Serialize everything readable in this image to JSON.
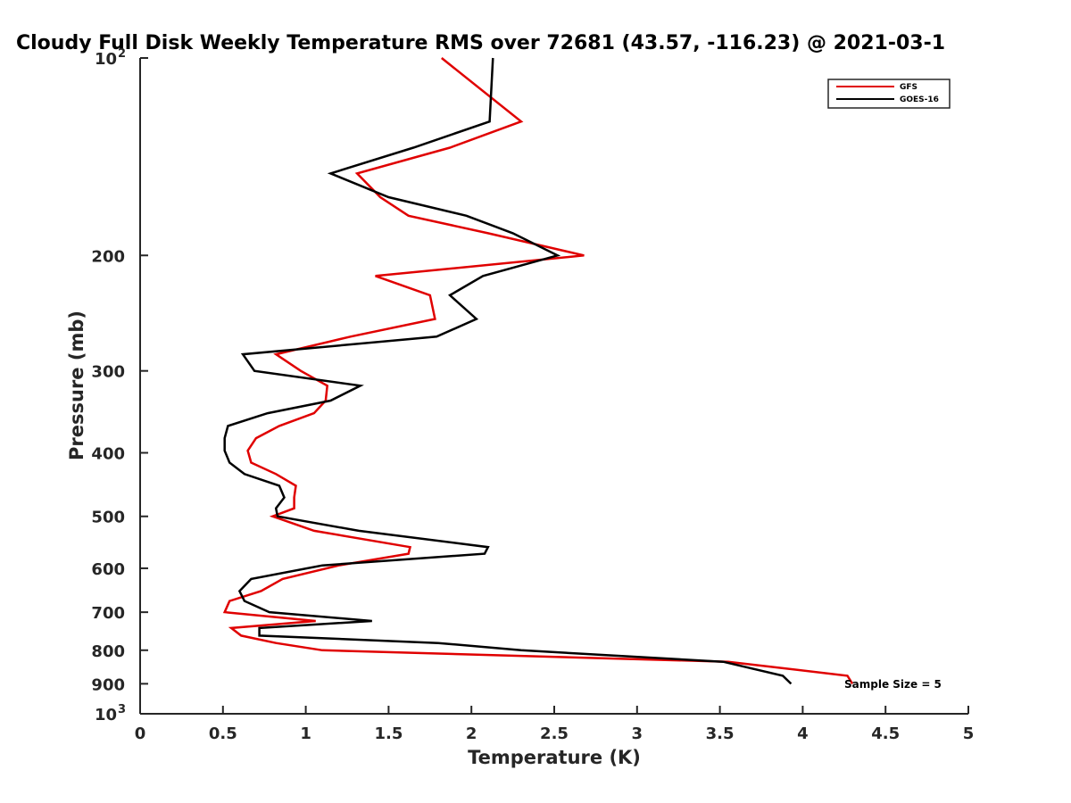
{
  "chart_data": {
    "type": "line",
    "title": "Cloudy Full Disk Weekly Temperature RMS over 72681 (43.57, -116.23) @ 2021-03-1",
    "xlabel": "Temperature (K)",
    "ylabel": "Pressure (mb)",
    "xlim": [
      0,
      5
    ],
    "ylim": [
      100,
      1000
    ],
    "y_scale": "log",
    "y_reversed": true,
    "grid": false,
    "legend_position": "top-right",
    "annotation": "Sample Size = 5",
    "x_tick_labels": [
      "0",
      "0.5",
      "1",
      "1.5",
      "2",
      "2.5",
      "3",
      "3.5",
      "4",
      "4.5",
      "5"
    ],
    "y_ticks": [
      {
        "value": 100,
        "label": "10",
        "sup": "2"
      },
      {
        "value": 200,
        "label": "200",
        "sup": ""
      },
      {
        "value": 300,
        "label": "300",
        "sup": ""
      },
      {
        "value": 400,
        "label": "400",
        "sup": ""
      },
      {
        "value": 500,
        "label": "500",
        "sup": ""
      },
      {
        "value": 600,
        "label": "600",
        "sup": ""
      },
      {
        "value": 700,
        "label": "700",
        "sup": ""
      },
      {
        "value": 800,
        "label": "800",
        "sup": ""
      },
      {
        "value": 900,
        "label": "900",
        "sup": ""
      },
      {
        "value": 1000,
        "label": "10",
        "sup": "3"
      }
    ],
    "series": [
      {
        "name": "GFS",
        "color": "#e00000",
        "points": [
          [
            1.82,
            100
          ],
          [
            2.3,
            125
          ],
          [
            1.87,
            137
          ],
          [
            1.31,
            150
          ],
          [
            1.45,
            163
          ],
          [
            1.62,
            174
          ],
          [
            2.1,
            185
          ],
          [
            2.68,
            200
          ],
          [
            1.42,
            215
          ],
          [
            1.75,
            230
          ],
          [
            1.78,
            250
          ],
          [
            1.27,
            266
          ],
          [
            0.82,
            283
          ],
          [
            0.97,
            300
          ],
          [
            1.13,
            316
          ],
          [
            1.12,
            333
          ],
          [
            1.05,
            348
          ],
          [
            0.84,
            364
          ],
          [
            0.7,
            380
          ],
          [
            0.65,
            397
          ],
          [
            0.67,
            414
          ],
          [
            0.82,
            431
          ],
          [
            0.94,
            449
          ],
          [
            0.93,
            468
          ],
          [
            0.93,
            486
          ],
          [
            0.8,
            500
          ],
          [
            1.05,
            526
          ],
          [
            1.63,
            557
          ],
          [
            1.62,
            570
          ],
          [
            1.2,
            594
          ],
          [
            0.86,
            623
          ],
          [
            0.73,
            650
          ],
          [
            0.54,
            673
          ],
          [
            0.51,
            700
          ],
          [
            1.06,
            722
          ],
          [
            0.55,
            740
          ],
          [
            0.61,
            760
          ],
          [
            0.82,
            780
          ],
          [
            1.1,
            800
          ],
          [
            3.55,
            833
          ],
          [
            4.27,
            875
          ],
          [
            4.3,
            900
          ]
        ]
      },
      {
        "name": "GOES-16",
        "color": "#000000",
        "points": [
          [
            2.13,
            100
          ],
          [
            2.11,
            125
          ],
          [
            1.65,
            137
          ],
          [
            1.15,
            150
          ],
          [
            1.5,
            163
          ],
          [
            1.97,
            174
          ],
          [
            2.25,
            185
          ],
          [
            2.52,
            200
          ],
          [
            2.07,
            215
          ],
          [
            1.87,
            230
          ],
          [
            2.03,
            250
          ],
          [
            1.79,
            266
          ],
          [
            0.62,
            283
          ],
          [
            0.69,
            300
          ],
          [
            1.33,
            316
          ],
          [
            1.15,
            333
          ],
          [
            0.77,
            348
          ],
          [
            0.53,
            364
          ],
          [
            0.51,
            380
          ],
          [
            0.51,
            397
          ],
          [
            0.54,
            414
          ],
          [
            0.63,
            431
          ],
          [
            0.84,
            449
          ],
          [
            0.87,
            468
          ],
          [
            0.82,
            486
          ],
          [
            0.83,
            500
          ],
          [
            1.32,
            526
          ],
          [
            2.1,
            557
          ],
          [
            2.08,
            570
          ],
          [
            1.1,
            594
          ],
          [
            0.67,
            623
          ],
          [
            0.6,
            650
          ],
          [
            0.63,
            673
          ],
          [
            0.78,
            700
          ],
          [
            1.4,
            722
          ],
          [
            0.72,
            740
          ],
          [
            0.72,
            760
          ],
          [
            1.8,
            780
          ],
          [
            2.3,
            800
          ],
          [
            3.52,
            833
          ],
          [
            3.88,
            875
          ],
          [
            3.93,
            900
          ]
        ]
      }
    ]
  }
}
